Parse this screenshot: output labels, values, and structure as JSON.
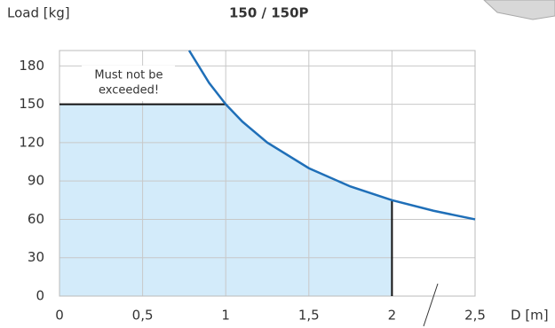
{
  "chart_data": {
    "type": "line",
    "title": "150 / 150P",
    "y_label": "Load [kg]",
    "x_label": "D [m]",
    "annotation": [
      "Must not be",
      "exceeded!"
    ],
    "xlim": [
      0,
      2.5
    ],
    "ylim": [
      0,
      192
    ],
    "xticks": [
      0,
      {
        "value": 0.5,
        "label": "0,5"
      },
      1,
      {
        "value": 1.5,
        "label": "1,5"
      },
      2,
      {
        "value": 2.5,
        "label": "2,5"
      }
    ],
    "yticks": [
      0,
      30,
      60,
      90,
      120,
      150,
      180
    ],
    "grid": true,
    "area": {
      "color": "#d3ebfa",
      "x": [
        0,
        1,
        1.25,
        1.5,
        1.75,
        2
      ],
      "values": [
        150,
        150,
        120,
        100,
        85.7,
        75
      ]
    },
    "limit": {
      "color": "#111111",
      "x": [
        0,
        1
      ],
      "values": [
        150,
        150
      ]
    },
    "series": [
      {
        "color": "#1f6fb8",
        "x": [
          0.78,
          0.9,
          1,
          1.1,
          1.25,
          1.5,
          1.75,
          2,
          2.25,
          2.5
        ],
        "values": [
          192,
          166.7,
          150,
          136.4,
          120,
          100,
          85.7,
          75,
          66.7,
          60
        ]
      }
    ]
  }
}
